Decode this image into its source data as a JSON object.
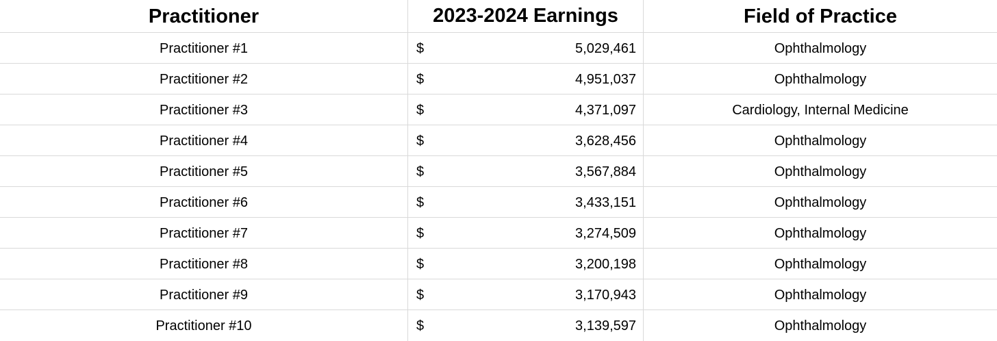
{
  "table": {
    "headers": {
      "practitioner": "Practitioner",
      "earnings": "2023-2024 Earnings",
      "field": "Field of Practice"
    },
    "currency_symbol": "$",
    "rows": [
      {
        "practitioner": "Practitioner #1",
        "earnings": "5,029,461",
        "field": "Ophthalmology"
      },
      {
        "practitioner": "Practitioner #2",
        "earnings": "4,951,037",
        "field": "Ophthalmology"
      },
      {
        "practitioner": "Practitioner #3",
        "earnings": "4,371,097",
        "field": "Cardiology, Internal Medicine"
      },
      {
        "practitioner": "Practitioner #4",
        "earnings": "3,628,456",
        "field": "Ophthalmology"
      },
      {
        "practitioner": "Practitioner #5",
        "earnings": "3,567,884",
        "field": "Ophthalmology"
      },
      {
        "practitioner": "Practitioner #6",
        "earnings": "3,433,151",
        "field": "Ophthalmology"
      },
      {
        "practitioner": "Practitioner #7",
        "earnings": "3,274,509",
        "field": "Ophthalmology"
      },
      {
        "practitioner": "Practitioner #8",
        "earnings": "3,200,198",
        "field": "Ophthalmology"
      },
      {
        "practitioner": "Practitioner #9",
        "earnings": "3,170,943",
        "field": "Ophthalmology"
      },
      {
        "practitioner": "Practitioner #10",
        "earnings": "3,139,597",
        "field": "Ophthalmology"
      }
    ]
  }
}
